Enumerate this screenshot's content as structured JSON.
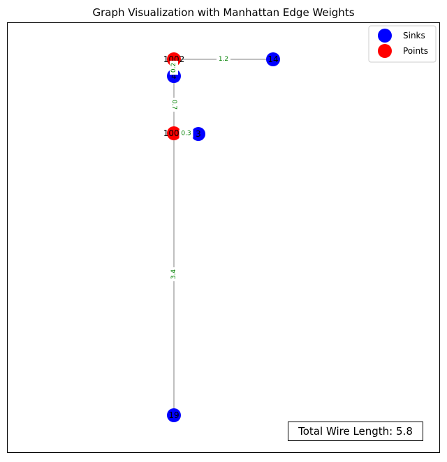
{
  "title": "Graph Visualization with Manhattan Edge Weights",
  "legend": [
    {
      "label": "Sinks",
      "color": "#0000ff"
    },
    {
      "label": "Points",
      "color": "#ff0000"
    }
  ],
  "nodes": [
    {
      "label": "1002",
      "kind": "Points"
    },
    {
      "label": "4",
      "kind": "Sinks"
    },
    {
      "label": "14",
      "kind": "Sinks"
    },
    {
      "label": "1001",
      "kind": "Points"
    },
    {
      "label": "3",
      "kind": "Sinks"
    },
    {
      "label": "19",
      "kind": "Sinks"
    }
  ],
  "edges": [
    {
      "from": 0,
      "to": 2,
      "weight": "1.2"
    },
    {
      "from": 0,
      "to": 1,
      "weight": "0.2"
    },
    {
      "from": 1,
      "to": 3,
      "weight": "0.7"
    },
    {
      "from": 3,
      "to": 4,
      "weight": "0.3"
    },
    {
      "from": 3,
      "to": 5,
      "weight": "3.4"
    }
  ],
  "total": "Total Wire Length: 5.8"
}
